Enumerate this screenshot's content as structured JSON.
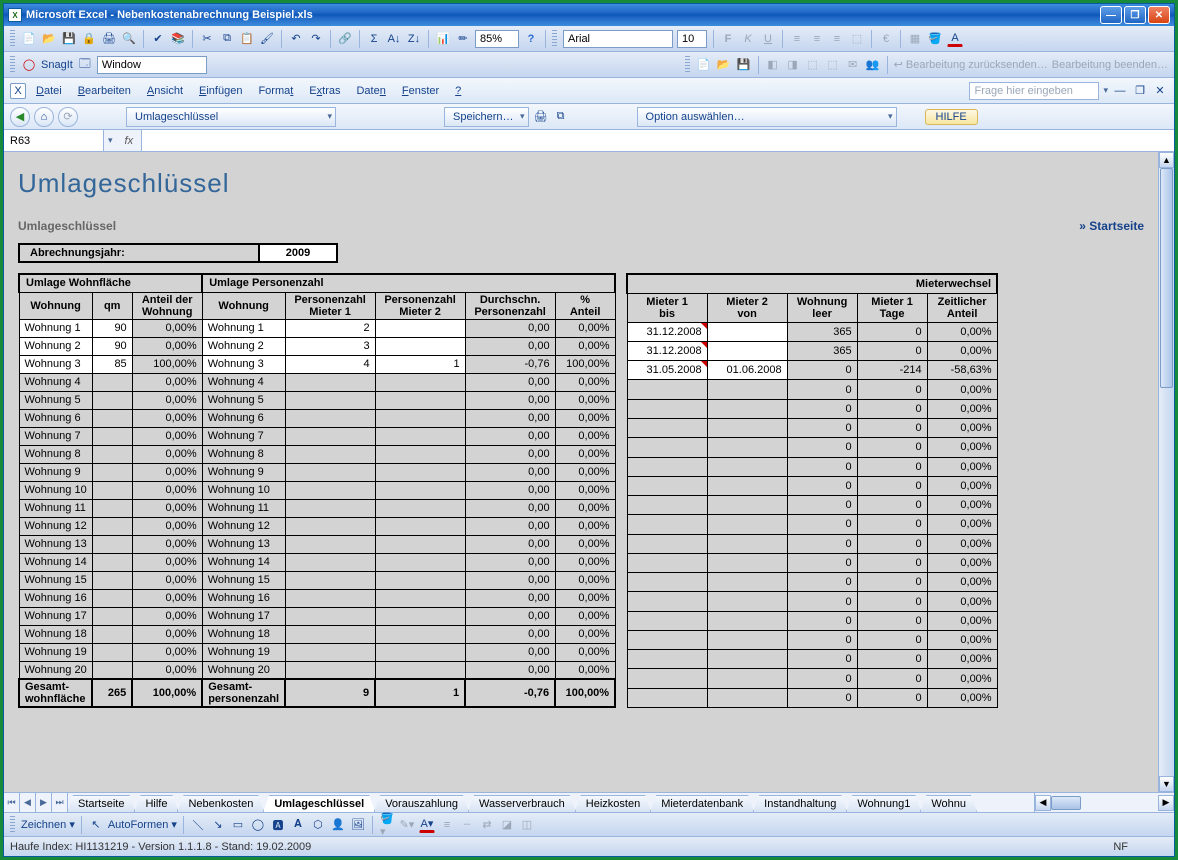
{
  "window": {
    "app": "Microsoft Excel",
    "doc": "Nebenkostenabrechnung Beispiel.xls"
  },
  "toolbars": {
    "snagit_label": "SnagIt",
    "snagit_target": "Window",
    "font_name": "Arial",
    "font_size": "10",
    "zoom": "85%",
    "question_placeholder": "Frage hier eingeben",
    "edit_return": "Bearbeitung zurücksenden…",
    "edit_end": "Bearbeitung beenden…"
  },
  "menu": {
    "datei": "Datei",
    "bearbeiten": "Bearbeiten",
    "ansicht": "Ansicht",
    "einfuegen": "Einfügen",
    "format": "Format",
    "extras": "Extras",
    "daten": "Daten",
    "fenster": "Fenster",
    "hilfe": "?"
  },
  "controls": {
    "dropdown1": "Umlageschlüssel",
    "speichern": "Speichern…",
    "option": "Option auswählen…",
    "hilfe": "HILFE"
  },
  "formula": {
    "cell": "R63",
    "fx": "fx"
  },
  "sheet": {
    "title": "Umlageschlüssel",
    "subtitle": "Umlageschlüssel",
    "start_link": "» Startseite",
    "year_label": "Abrechnungsjahr:",
    "year_value": "2009",
    "headers": {
      "umlage_wohn": "Umlage Wohnfläche",
      "umlage_pers": "Umlage Personenzahl",
      "mieterwechsel": "Mieterwechsel",
      "wohnung": "Wohnung",
      "qm": "qm",
      "anteil_wohn": "Anteil der\nWohnung",
      "pers1": "Personenzahl\nMieter 1",
      "pers2": "Personenzahl\nMieter 2",
      "durch": "Durchschn.\nPersonenzahl",
      "p_anteil": "%\nAnteil",
      "m1_bis": "Mieter 1\nbis",
      "m2_von": "Mieter 2\nvon",
      "w_leer": "Wohnung\nleer",
      "m1_tage": "Mieter 1\nTage",
      "z_anteil": "Zeitlicher\nAnteil",
      "total_wohn": "Gesamt-\nwohnfläche",
      "total_pers": "Gesamt-\npersonenzahl"
    },
    "rows": [
      {
        "w": "Wohnung 1",
        "qm": "90",
        "aw": "0,00%",
        "p1": "2",
        "p2": "",
        "d": "0,00",
        "pa": "0,00%",
        "m1": "31.12.2008",
        "m2": "",
        "leer": "365",
        "tage": "0",
        "za": "0,00%",
        "hl": true
      },
      {
        "w": "Wohnung 2",
        "qm": "90",
        "aw": "0,00%",
        "p1": "3",
        "p2": "",
        "d": "0,00",
        "pa": "0,00%",
        "m1": "31.12.2008",
        "m2": "",
        "leer": "365",
        "tage": "0",
        "za": "0,00%",
        "hl": true
      },
      {
        "w": "Wohnung 3",
        "qm": "85",
        "aw": "100,00%",
        "p1": "4",
        "p2": "1",
        "d": "-0,76",
        "pa": "100,00%",
        "m1": "31.05.2008",
        "m2": "01.06.2008",
        "leer": "0",
        "tage": "-214",
        "za": "-58,63%",
        "hl": true
      },
      {
        "w": "Wohnung 4",
        "qm": "",
        "aw": "0,00%",
        "p1": "",
        "p2": "",
        "d": "0,00",
        "pa": "0,00%",
        "m1": "",
        "m2": "",
        "leer": "0",
        "tage": "0",
        "za": "0,00%"
      },
      {
        "w": "Wohnung 5",
        "qm": "",
        "aw": "0,00%",
        "p1": "",
        "p2": "",
        "d": "0,00",
        "pa": "0,00%",
        "m1": "",
        "m2": "",
        "leer": "0",
        "tage": "0",
        "za": "0,00%"
      },
      {
        "w": "Wohnung 6",
        "qm": "",
        "aw": "0,00%",
        "p1": "",
        "p2": "",
        "d": "0,00",
        "pa": "0,00%",
        "m1": "",
        "m2": "",
        "leer": "0",
        "tage": "0",
        "za": "0,00%"
      },
      {
        "w": "Wohnung 7",
        "qm": "",
        "aw": "0,00%",
        "p1": "",
        "p2": "",
        "d": "0,00",
        "pa": "0,00%",
        "m1": "",
        "m2": "",
        "leer": "0",
        "tage": "0",
        "za": "0,00%"
      },
      {
        "w": "Wohnung 8",
        "qm": "",
        "aw": "0,00%",
        "p1": "",
        "p2": "",
        "d": "0,00",
        "pa": "0,00%",
        "m1": "",
        "m2": "",
        "leer": "0",
        "tage": "0",
        "za": "0,00%"
      },
      {
        "w": "Wohnung 9",
        "qm": "",
        "aw": "0,00%",
        "p1": "",
        "p2": "",
        "d": "0,00",
        "pa": "0,00%",
        "m1": "",
        "m2": "",
        "leer": "0",
        "tage": "0",
        "za": "0,00%"
      },
      {
        "w": "Wohnung 10",
        "qm": "",
        "aw": "0,00%",
        "p1": "",
        "p2": "",
        "d": "0,00",
        "pa": "0,00%",
        "m1": "",
        "m2": "",
        "leer": "0",
        "tage": "0",
        "za": "0,00%"
      },
      {
        "w": "Wohnung 11",
        "qm": "",
        "aw": "0,00%",
        "p1": "",
        "p2": "",
        "d": "0,00",
        "pa": "0,00%",
        "m1": "",
        "m2": "",
        "leer": "0",
        "tage": "0",
        "za": "0,00%"
      },
      {
        "w": "Wohnung 12",
        "qm": "",
        "aw": "0,00%",
        "p1": "",
        "p2": "",
        "d": "0,00",
        "pa": "0,00%",
        "m1": "",
        "m2": "",
        "leer": "0",
        "tage": "0",
        "za": "0,00%"
      },
      {
        "w": "Wohnung 13",
        "qm": "",
        "aw": "0,00%",
        "p1": "",
        "p2": "",
        "d": "0,00",
        "pa": "0,00%",
        "m1": "",
        "m2": "",
        "leer": "0",
        "tage": "0",
        "za": "0,00%"
      },
      {
        "w": "Wohnung 14",
        "qm": "",
        "aw": "0,00%",
        "p1": "",
        "p2": "",
        "d": "0,00",
        "pa": "0,00%",
        "m1": "",
        "m2": "",
        "leer": "0",
        "tage": "0",
        "za": "0,00%"
      },
      {
        "w": "Wohnung 15",
        "qm": "",
        "aw": "0,00%",
        "p1": "",
        "p2": "",
        "d": "0,00",
        "pa": "0,00%",
        "m1": "",
        "m2": "",
        "leer": "0",
        "tage": "0",
        "za": "0,00%"
      },
      {
        "w": "Wohnung 16",
        "qm": "",
        "aw": "0,00%",
        "p1": "",
        "p2": "",
        "d": "0,00",
        "pa": "0,00%",
        "m1": "",
        "m2": "",
        "leer": "0",
        "tage": "0",
        "za": "0,00%"
      },
      {
        "w": "Wohnung 17",
        "qm": "",
        "aw": "0,00%",
        "p1": "",
        "p2": "",
        "d": "0,00",
        "pa": "0,00%",
        "m1": "",
        "m2": "",
        "leer": "0",
        "tage": "0",
        "za": "0,00%"
      },
      {
        "w": "Wohnung 18",
        "qm": "",
        "aw": "0,00%",
        "p1": "",
        "p2": "",
        "d": "0,00",
        "pa": "0,00%",
        "m1": "",
        "m2": "",
        "leer": "0",
        "tage": "0",
        "za": "0,00%"
      },
      {
        "w": "Wohnung 19",
        "qm": "",
        "aw": "0,00%",
        "p1": "",
        "p2": "",
        "d": "0,00",
        "pa": "0,00%",
        "m1": "",
        "m2": "",
        "leer": "0",
        "tage": "0",
        "za": "0,00%"
      },
      {
        "w": "Wohnung 20",
        "qm": "",
        "aw": "0,00%",
        "p1": "",
        "p2": "",
        "d": "0,00",
        "pa": "0,00%",
        "m1": "",
        "m2": "",
        "leer": "0",
        "tage": "0",
        "za": "0,00%"
      }
    ],
    "totals": {
      "qm": "265",
      "aw": "100,00%",
      "p1": "9",
      "p2": "1",
      "d": "-0,76",
      "pa": "100,00%"
    }
  },
  "tabs": [
    "Startseite",
    "Hilfe",
    "Nebenkosten",
    "Umlageschlüssel",
    "Vorauszahlung",
    "Wasserverbrauch",
    "Heizkosten",
    "Mieterdatenbank",
    "Instandhaltung",
    "Wohnung1",
    "Wohnu"
  ],
  "tabs_active_index": 3,
  "drawbar": {
    "zeichnen": "Zeichnen",
    "autoformen": "AutoFormen"
  },
  "status": {
    "text": "Haufe Index: HI1131219 - Version 1.1.1.8 - Stand: 19.02.2009",
    "nf": "NF"
  }
}
